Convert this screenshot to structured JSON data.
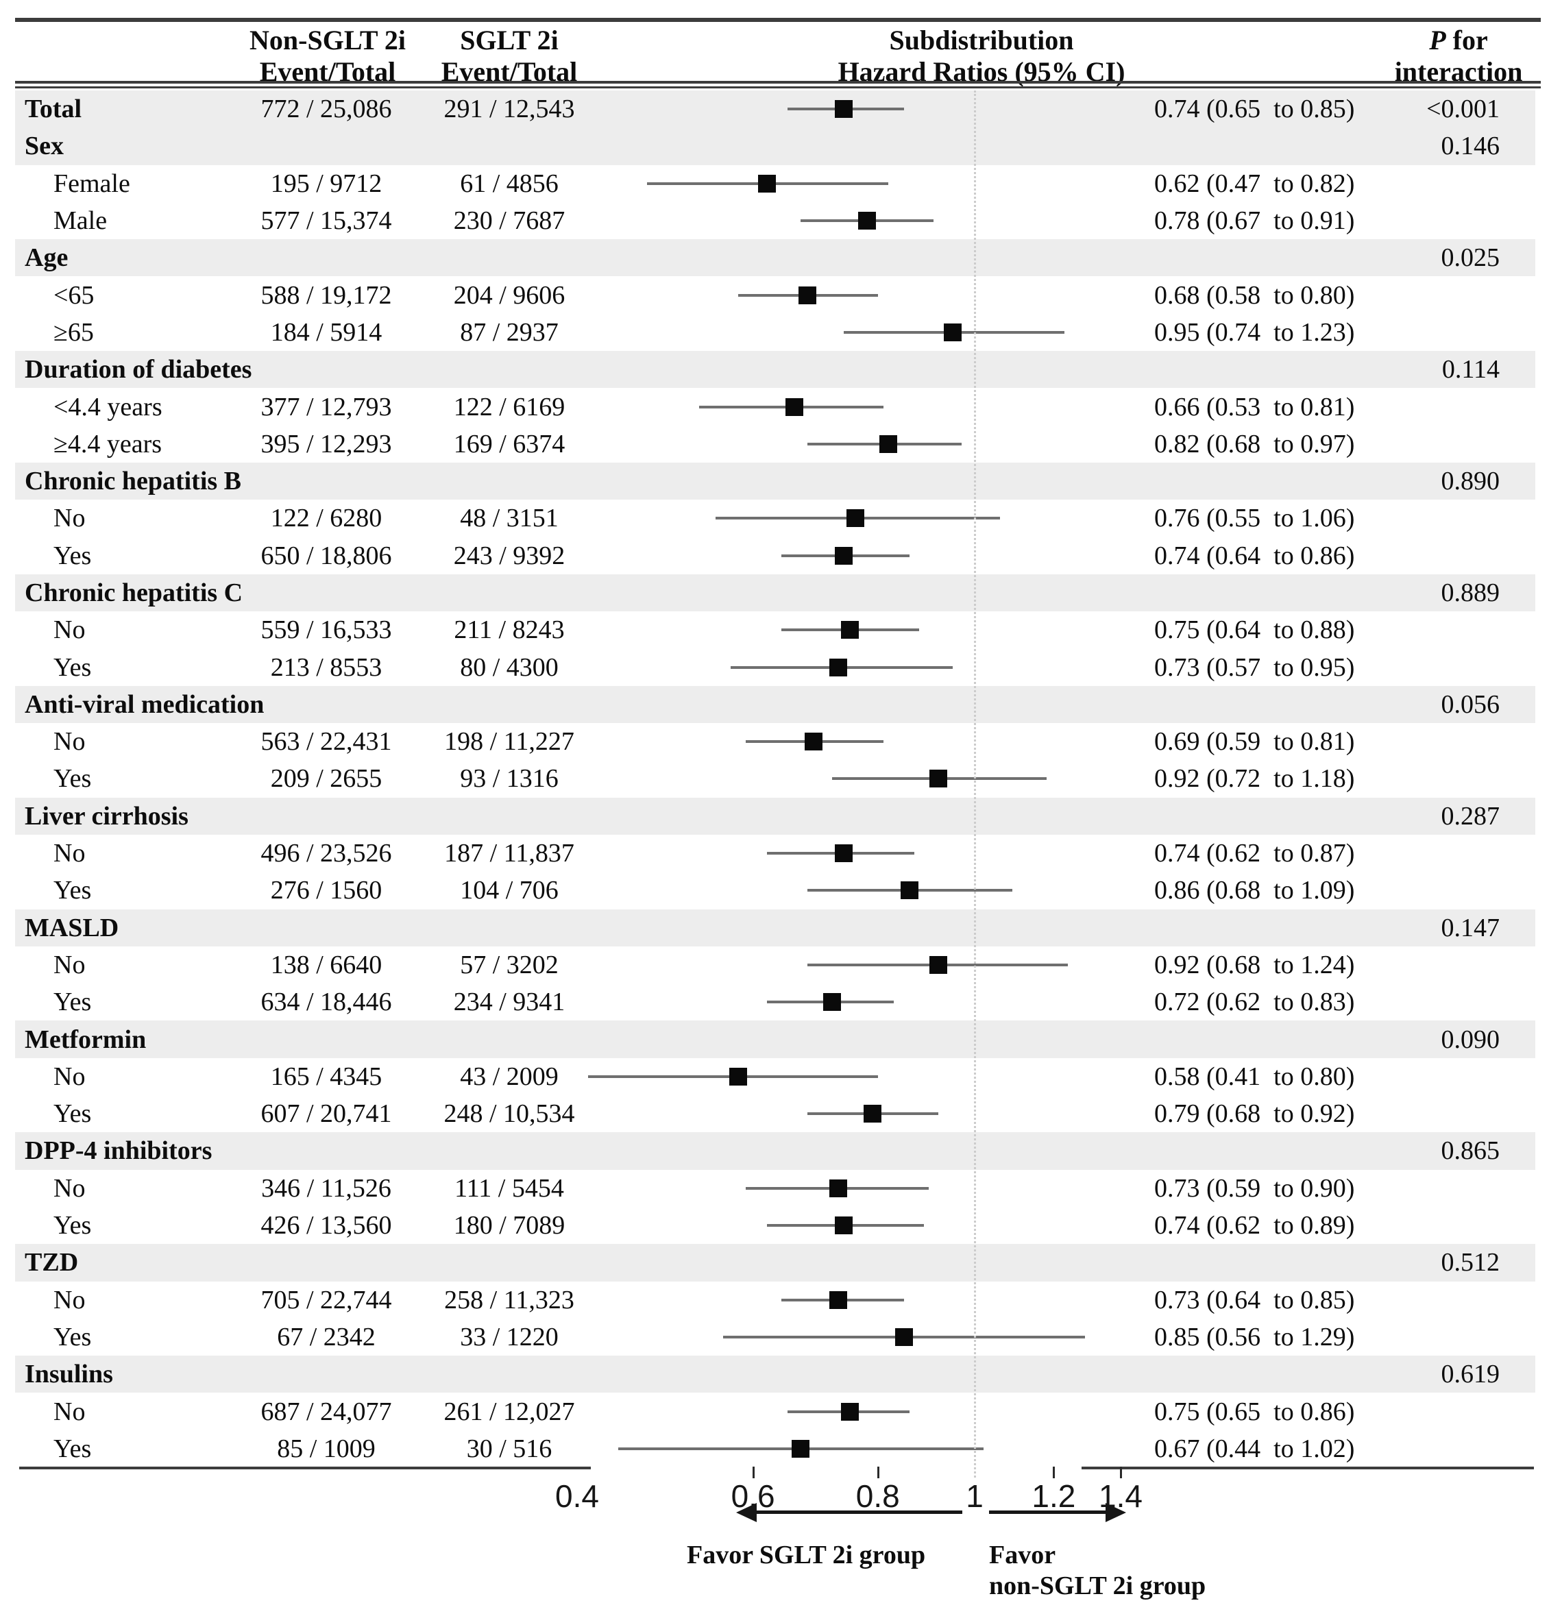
{
  "figure": {
    "header": {
      "col_nonsglt_line1": "Non-SGLT 2i",
      "col_nonsglt_line2": "Event/Total",
      "col_sglt_line1": "SGLT 2i",
      "col_sglt_line2": "Event/Total",
      "col_hr_line1": "Subdistribution",
      "col_hr_line2": "Hazard Ratios (95% CI)",
      "col_p_italic": "P",
      "col_p_rest": " for",
      "col_p_line2": "interaction"
    },
    "rows": [
      {
        "type": "summary",
        "label": "Total",
        "non_sglt": "772 / 25,086",
        "sglt": "291 / 12,543",
        "hr_ci": "0.74 (0.65  to 0.85)",
        "p": "<0.001"
      },
      {
        "type": "category",
        "label": "Sex",
        "p": "0.146"
      },
      {
        "type": "sub",
        "label": "Female",
        "non_sglt": "195 / 9712",
        "sglt": "61 / 4856",
        "hr_ci": "0.62 (0.47  to 0.82)"
      },
      {
        "type": "sub",
        "label": "Male",
        "non_sglt": "577 / 15,374",
        "sglt": "230 / 7687",
        "hr_ci": "0.78 (0.67  to 0.91)"
      },
      {
        "type": "category",
        "label": "Age",
        "p": "0.025"
      },
      {
        "type": "sub",
        "label": "<65",
        "non_sglt": "588 / 19,172",
        "sglt": "204 / 9606",
        "hr_ci": "0.68 (0.58  to 0.80)"
      },
      {
        "type": "sub",
        "label": "≥65",
        "non_sglt": "184 / 5914",
        "sglt": "87 / 2937",
        "hr_ci": "0.95 (0.74  to 1.23)"
      },
      {
        "type": "category",
        "label": "Duration of diabetes",
        "p": "0.114"
      },
      {
        "type": "sub",
        "label": "<4.4 years",
        "non_sglt": "377 / 12,793",
        "sglt": "122 / 6169",
        "hr_ci": "0.66 (0.53  to 0.81)"
      },
      {
        "type": "sub",
        "label": "≥4.4 years",
        "non_sglt": "395 / 12,293",
        "sglt": "169 / 6374",
        "hr_ci": "0.82 (0.68  to 0.97)"
      },
      {
        "type": "category",
        "label": "Chronic hepatitis B",
        "p": "0.890"
      },
      {
        "type": "sub",
        "label": "No",
        "non_sglt": "122 / 6280",
        "sglt": "48 / 3151",
        "hr_ci": "0.76 (0.55  to 1.06)"
      },
      {
        "type": "sub",
        "label": "Yes",
        "non_sglt": "650 / 18,806",
        "sglt": "243 / 9392",
        "hr_ci": "0.74 (0.64  to 0.86)"
      },
      {
        "type": "category",
        "label": "Chronic hepatitis C",
        "p": "0.889"
      },
      {
        "type": "sub",
        "label": "No",
        "non_sglt": "559 / 16,533",
        "sglt": "211 / 8243",
        "hr_ci": "0.75 (0.64  to 0.88)"
      },
      {
        "type": "sub",
        "label": "Yes",
        "non_sglt": "213 / 8553",
        "sglt": "80 / 4300",
        "hr_ci": "0.73 (0.57  to 0.95)"
      },
      {
        "type": "category",
        "label": "Anti-viral medication",
        "p": "0.056"
      },
      {
        "type": "sub",
        "label": "No",
        "non_sglt": "563 / 22,431",
        "sglt": "198 / 11,227",
        "hr_ci": "0.69 (0.59  to 0.81)"
      },
      {
        "type": "sub",
        "label": "Yes",
        "non_sglt": "209 / 2655",
        "sglt": "93 / 1316",
        "hr_ci": "0.92 (0.72  to 1.18)"
      },
      {
        "type": "category",
        "label": "Liver cirrhosis",
        "p": "0.287"
      },
      {
        "type": "sub",
        "label": "No",
        "non_sglt": "496 / 23,526",
        "sglt": "187 / 11,837",
        "hr_ci": "0.74 (0.62  to 0.87)"
      },
      {
        "type": "sub",
        "label": "Yes",
        "non_sglt": "276 / 1560",
        "sglt": "104 / 706",
        "hr_ci": "0.86 (0.68  to 1.09)"
      },
      {
        "type": "category",
        "label": "MASLD",
        "p": "0.147"
      },
      {
        "type": "sub",
        "label": "No",
        "non_sglt": "138 / 6640",
        "sglt": "57 / 3202",
        "hr_ci": "0.92 (0.68  to 1.24)"
      },
      {
        "type": "sub",
        "label": "Yes",
        "non_sglt": "634 / 18,446",
        "sglt": "234 / 9341",
        "hr_ci": "0.72 (0.62  to 0.83)"
      },
      {
        "type": "category",
        "label": "Metformin",
        "p": "0.090"
      },
      {
        "type": "sub",
        "label": "No",
        "non_sglt": "165 / 4345",
        "sglt": "43 / 2009",
        "hr_ci": "0.58 (0.41  to 0.80)"
      },
      {
        "type": "sub",
        "label": "Yes",
        "non_sglt": "607 / 20,741",
        "sglt": "248 / 10,534",
        "hr_ci": "0.79 (0.68  to 0.92)"
      },
      {
        "type": "category",
        "label": "DPP-4 inhibitors",
        "p": "0.865"
      },
      {
        "type": "sub",
        "label": "No",
        "non_sglt": "346 / 11,526",
        "sglt": "111 / 5454",
        "hr_ci": "0.73 (0.59  to 0.90)"
      },
      {
        "type": "sub",
        "label": "Yes",
        "non_sglt": "426 / 13,560",
        "sglt": "180 / 7089",
        "hr_ci": "0.74 (0.62  to 0.89)"
      },
      {
        "type": "category",
        "label": "TZD",
        "p": "0.512"
      },
      {
        "type": "sub",
        "label": "No",
        "non_sglt": "705 / 22,744",
        "sglt": "258 / 11,323",
        "hr_ci": "0.73 (0.64  to 0.85)"
      },
      {
        "type": "sub",
        "label": "Yes",
        "non_sglt": "67 / 2342",
        "sglt": "33 / 1220",
        "hr_ci": "0.85 (0.56  to 1.29)"
      },
      {
        "type": "category",
        "label": "Insulins",
        "p": "0.619"
      },
      {
        "type": "sub",
        "label": "No",
        "non_sglt": "687 / 24,077",
        "sglt": "261 / 12,027",
        "hr_ci": "0.75 (0.65  to 0.86)"
      },
      {
        "type": "sub",
        "label": "Yes",
        "non_sglt": "85 / 1009",
        "sglt": "30 / 516",
        "hr_ci": "0.67 (0.44  to 1.02)"
      }
    ],
    "axis": {
      "tick_labels": [
        "0.4",
        "0.6",
        "0.8",
        "1",
        "1.2",
        "1.4"
      ]
    },
    "favor": {
      "left": "Favor SGLT 2i group",
      "right_line1": "Favor",
      "right_line2": "non-SGLT 2i group"
    }
  },
  "chart_data": {
    "type": "scatter",
    "subtype": "forest-plot",
    "title": "Subdistribution Hazard Ratios (95% CI)",
    "x_scale": "log",
    "x_range": [
      0.4,
      1.45
    ],
    "x_ticks": [
      0.4,
      0.6,
      0.8,
      1,
      1.2,
      1.4
    ],
    "reference_line_x": 1,
    "favor_left_label": "Favor SGLT 2i group",
    "favor_right_label": "Favor non-SGLT 2i group",
    "points": [
      {
        "label": "Total",
        "hr": 0.74,
        "ci_low": 0.65,
        "ci_high": 0.85
      },
      {
        "label": "Sex: Female",
        "hr": 0.62,
        "ci_low": 0.47,
        "ci_high": 0.82
      },
      {
        "label": "Sex: Male",
        "hr": 0.78,
        "ci_low": 0.67,
        "ci_high": 0.91
      },
      {
        "label": "Age: <65",
        "hr": 0.68,
        "ci_low": 0.58,
        "ci_high": 0.8
      },
      {
        "label": "Age: ≥65",
        "hr": 0.95,
        "ci_low": 0.74,
        "ci_high": 1.23
      },
      {
        "label": "Duration of diabetes: <4.4 years",
        "hr": 0.66,
        "ci_low": 0.53,
        "ci_high": 0.81
      },
      {
        "label": "Duration of diabetes: ≥4.4 years",
        "hr": 0.82,
        "ci_low": 0.68,
        "ci_high": 0.97
      },
      {
        "label": "Chronic hepatitis B: No",
        "hr": 0.76,
        "ci_low": 0.55,
        "ci_high": 1.06
      },
      {
        "label": "Chronic hepatitis B: Yes",
        "hr": 0.74,
        "ci_low": 0.64,
        "ci_high": 0.86
      },
      {
        "label": "Chronic hepatitis C: No",
        "hr": 0.75,
        "ci_low": 0.64,
        "ci_high": 0.88
      },
      {
        "label": "Chronic hepatitis C: Yes",
        "hr": 0.73,
        "ci_low": 0.57,
        "ci_high": 0.95
      },
      {
        "label": "Anti-viral medication: No",
        "hr": 0.69,
        "ci_low": 0.59,
        "ci_high": 0.81
      },
      {
        "label": "Anti-viral medication: Yes",
        "hr": 0.92,
        "ci_low": 0.72,
        "ci_high": 1.18
      },
      {
        "label": "Liver cirrhosis: No",
        "hr": 0.74,
        "ci_low": 0.62,
        "ci_high": 0.87
      },
      {
        "label": "Liver cirrhosis: Yes",
        "hr": 0.86,
        "ci_low": 0.68,
        "ci_high": 1.09
      },
      {
        "label": "MASLD: No",
        "hr": 0.92,
        "ci_low": 0.68,
        "ci_high": 1.24
      },
      {
        "label": "MASLD: Yes",
        "hr": 0.72,
        "ci_low": 0.62,
        "ci_high": 0.83
      },
      {
        "label": "Metformin: No",
        "hr": 0.58,
        "ci_low": 0.41,
        "ci_high": 0.8
      },
      {
        "label": "Metformin: Yes",
        "hr": 0.79,
        "ci_low": 0.68,
        "ci_high": 0.92
      },
      {
        "label": "DPP-4 inhibitors: No",
        "hr": 0.73,
        "ci_low": 0.59,
        "ci_high": 0.9
      },
      {
        "label": "DPP-4 inhibitors: Yes",
        "hr": 0.74,
        "ci_low": 0.62,
        "ci_high": 0.89
      },
      {
        "label": "TZD: No",
        "hr": 0.73,
        "ci_low": 0.64,
        "ci_high": 0.85
      },
      {
        "label": "TZD: Yes",
        "hr": 0.85,
        "ci_low": 0.56,
        "ci_high": 1.29
      },
      {
        "label": "Insulins: No",
        "hr": 0.75,
        "ci_low": 0.65,
        "ci_high": 0.86
      },
      {
        "label": "Insulins: Yes",
        "hr": 0.67,
        "ci_low": 0.44,
        "ci_high": 1.02
      }
    ]
  }
}
